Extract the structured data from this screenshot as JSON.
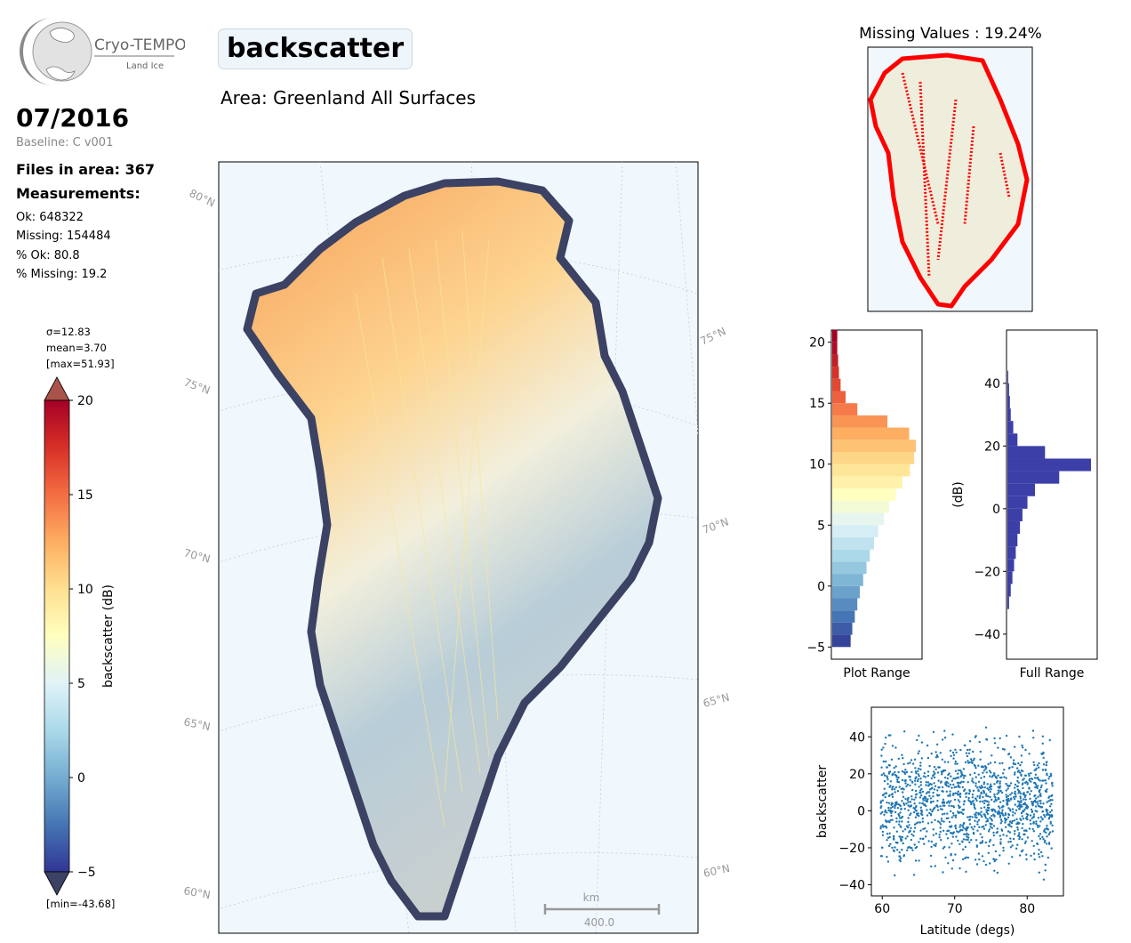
{
  "header": {
    "logo_text": "Cryo-TEMPO",
    "logo_subtext": "Land Ice",
    "month": "07/2016",
    "baseline": "Baseline: C v001",
    "files": "Files in area: 367",
    "measurements_label": "Measurements:",
    "stats": [
      "Ok: 648322",
      "Missing: 154484",
      "% Ok: 80.8",
      "% Missing: 19.2"
    ],
    "variable": "backscatter",
    "area": "Area: Greenland All Surfaces"
  },
  "colorbar": {
    "sigma": "σ=12.83",
    "mean": "mean=3.70",
    "max": "[max=51.93]",
    "min": "[min=-43.68]",
    "label": "backscatter (dB)",
    "range": [
      -5,
      20
    ],
    "ticks": [
      20,
      15,
      10,
      5,
      0,
      -5
    ],
    "tick_labels": [
      "20",
      "15",
      "10",
      "5",
      "0",
      "−5"
    ],
    "colors": [
      "#313695",
      "#4575b4",
      "#74add1",
      "#abd9e9",
      "#e0f3f8",
      "#ffffbf",
      "#fee090",
      "#fdae61",
      "#f46d43",
      "#d73027",
      "#a50026"
    ],
    "over_color": "#a9534a",
    "under_color": "#3b4263"
  },
  "map": {
    "lat_labels_left": [
      "80°N",
      "75°N",
      "70°N",
      "65°N",
      "60°N"
    ],
    "lat_labels_right": [
      "75°N",
      "70°N",
      "65°N",
      "60°N"
    ],
    "scale_unit": "km",
    "scale_value": "400.0",
    "ocean_color": "#f0f7fd",
    "land_color": "#efeedd"
  },
  "missing_map": {
    "title": "Missing Values : 19.24%",
    "missing_color": "#ff0000"
  },
  "chart_data": [
    {
      "type": "bar",
      "orientation": "horizontal",
      "name": "plot-range-histogram",
      "xlabel": "Plot Range",
      "ylim": [
        -6,
        21
      ],
      "yticks": [
        -5,
        0,
        5,
        10,
        15,
        20
      ],
      "bins": [
        -5,
        -4,
        -3,
        -2,
        -1,
        0,
        1,
        2,
        3,
        4,
        5,
        6,
        7,
        8,
        9,
        10,
        11,
        12,
        13,
        14,
        15,
        16,
        17,
        18,
        19,
        20
      ],
      "values": [
        0.22,
        0.24,
        0.27,
        0.3,
        0.33,
        0.37,
        0.41,
        0.45,
        0.5,
        0.55,
        0.62,
        0.68,
        0.76,
        0.84,
        0.93,
        0.98,
        1.0,
        0.92,
        0.66,
        0.3,
        0.16,
        0.1,
        0.08,
        0.07,
        0.06,
        0.06
      ]
    },
    {
      "type": "bar",
      "orientation": "horizontal",
      "name": "full-range-histogram",
      "xlabel": "Full Range",
      "ylabel": "(dB)",
      "ylim": [
        -48,
        57
      ],
      "yticks": [
        -40,
        -20,
        0,
        20,
        40
      ],
      "bins": [
        -32,
        -28,
        -24,
        -20,
        -16,
        -12,
        -8,
        -4,
        0,
        4,
        8,
        12,
        16,
        20,
        24,
        28,
        32,
        36,
        40
      ],
      "values": [
        0.02,
        0.04,
        0.06,
        0.08,
        0.1,
        0.12,
        0.15,
        0.18,
        0.24,
        0.33,
        0.62,
        1.0,
        0.45,
        0.12,
        0.07,
        0.04,
        0.03,
        0.02,
        0.01
      ],
      "color": "#3b3fa7"
    },
    {
      "type": "scatter",
      "name": "latitude-scatter",
      "xlabel": "Latitude (degs)",
      "ylabel": "backscatter",
      "xlim": [
        58.5,
        85
      ],
      "ylim": [
        -46,
        56
      ],
      "xticks": [
        60,
        70,
        80
      ],
      "yticks": [
        -40,
        -20,
        0,
        20,
        40
      ],
      "x_range": [
        59.8,
        83.6
      ],
      "y_range": [
        -43.68,
        51.93
      ],
      "color": "#1f77b4"
    }
  ]
}
